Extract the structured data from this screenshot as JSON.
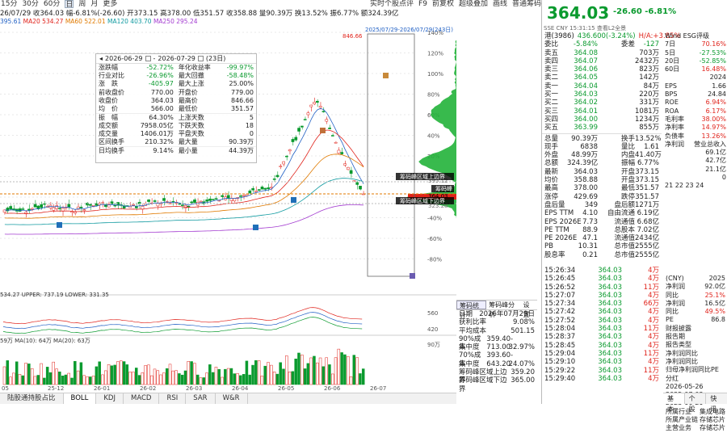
{
  "toolbar": {
    "periods": [
      "15分",
      "30分",
      "60分",
      "日",
      "周",
      "月",
      "更多"
    ],
    "active": "日",
    "quote": "26/07/29 收364.03 幅-6.81%(-26.60) 开373.15 高378.00 低351.57 收358.88 量90.39万 换13.52% 振6.77% 额324.39亿",
    "links": [
      "实时个股点评",
      "F9",
      "前复权",
      "超级叠加",
      "画线",
      "普通筹码"
    ]
  },
  "ma_line": {
    "ma5": "395.61",
    "ma20": "534.27",
    "ma60": "522.01",
    "ma120": "403.70",
    "ma250": "295.24"
  },
  "ma_colors": {
    "ma5": "#1f5fc4",
    "ma20": "#e0231b",
    "ma60": "#e07a00",
    "ma120": "#109aa0",
    "ma250": "#a33bd0"
  },
  "chart": {
    "y_ticks": [
      "140%",
      "120%",
      "100%",
      "80%",
      "60%",
      "40%",
      "20%",
      "0%",
      "-20%",
      "-40%",
      "-60%",
      "-80%"
    ],
    "max_label": "846.66",
    "price_labels": [
      "395.12",
      "364.03",
      "323.28"
    ],
    "interval_label": "2025/07/29-2026/07/29(243日)",
    "x_labels": [
      "05",
      "25-12",
      "26-01",
      "26-02",
      "26-03",
      "26-04",
      "26-05",
      "26-06",
      "26-07"
    ],
    "chip_labels": [
      "筹码峰区域上边界",
      "筹码峰",
      "筹码峰区域下边界"
    ],
    "boll": "534.27 UPPER: 737.19 LOWER: 331.35",
    "boll_ticks": [
      "560",
      "420"
    ],
    "vol": "59万 MA(10): 64万 MA(20): 63万",
    "vol_tick": "90万"
  },
  "statbox": {
    "date_from": "2026-06-29",
    "date_to": "2026-07-29",
    "days": "(23日)",
    "rows": [
      [
        "涨跌幅",
        "-52.72%",
        "年化收益率",
        "-99.97%"
      ],
      [
        "行业对比",
        "-26.96%",
        "最大回撤",
        "-58.48%"
      ],
      [
        "涨　跌",
        "-405.97",
        "最大上涨",
        "25.00%"
      ],
      [
        "前收盘价",
        "770.00",
        "开盘价",
        "779.00"
      ],
      [
        "收盘价",
        "364.03",
        "最高价",
        "846.66"
      ],
      [
        "均　价",
        "566.00",
        "最低价",
        "351.57"
      ],
      [
        "振　幅",
        "64.30%",
        "上涨天数",
        "5"
      ],
      [
        "成交额",
        "7958.05亿",
        "下跌天数",
        "18"
      ],
      [
        "成交量",
        "1406.01万",
        "平盘天数",
        "0"
      ],
      [
        "区间换手",
        "210.32%",
        "最大量",
        "90.39万"
      ],
      [
        "日均换手",
        "9.14%",
        "最小量",
        "44.39万"
      ]
    ]
  },
  "bottom_tabs": [
    "陆股通持股占比",
    "BOLL",
    "KDJ",
    "MACD",
    "RSI",
    "SAR",
    "W&R"
  ],
  "bottom_active": "BOLL",
  "chipinfo": {
    "tabs": [
      "筹码统计",
      "筹码峰分析",
      "设置"
    ],
    "rows": [
      [
        "日期",
        "2026年07月29日"
      ],
      [
        "获利比率",
        "9.08%"
      ],
      [
        "平均成本",
        "501.15"
      ],
      [
        "90%成本",
        "359.40-713.00"
      ],
      [
        "集中度",
        "32.97%"
      ],
      [
        "70%成本",
        "393.60-643.20"
      ],
      [
        "集中度",
        "24.07%"
      ],
      [
        "筹码峰区域上边界",
        "359.20"
      ],
      [
        "筹码峰区域下边界",
        "365.00"
      ]
    ]
  },
  "right": {
    "price": "364.03",
    "chg": "-26.60 -6.81%",
    "ticker": "SSE CNY 15:31:15 查看L2全景",
    "ref": [
      "港(3986)",
      "436.600(-3.24%)",
      "H/A:+3.85%"
    ],
    "book": [
      [
        "委比",
        "-5.84%",
        "委差",
        "-127"
      ],
      [
        "卖五",
        "364.08",
        "",
        "703万"
      ],
      [
        "卖四",
        "364.07",
        "",
        "2432万"
      ],
      [
        "卖三",
        "364.06",
        "",
        "823万"
      ],
      [
        "卖二",
        "364.05",
        "",
        "142万"
      ],
      [
        "卖一",
        "364.04",
        "",
        "84万"
      ],
      [
        "买一",
        "364.03",
        "",
        "220万"
      ],
      [
        "买二",
        "364.02",
        "",
        "331万"
      ],
      [
        "买三",
        "364.01",
        "",
        "1081万"
      ],
      [
        "买四",
        "364.00",
        "",
        "1234万"
      ],
      [
        "买五",
        "363.99",
        "",
        "855万"
      ]
    ],
    "stats": [
      [
        "总量",
        "90.39万",
        "换手",
        "13.52%"
      ],
      [
        "现手",
        "6838",
        "量比",
        "1.61"
      ],
      [
        "外盘",
        "48.99万",
        "内盘",
        "41.40万"
      ],
      [
        "总额",
        "324.39亿",
        "振幅",
        "6.77%"
      ],
      [
        "最新",
        "364.03",
        "开盘",
        "373.15"
      ],
      [
        "均价",
        "358.88",
        "开盘",
        "373.15"
      ],
      [
        "最高",
        "378.00",
        "最低",
        "351.57"
      ],
      [
        "涨停",
        "429.69",
        "跌停",
        "351.57"
      ],
      [
        "盘后量",
        "349",
        "盘后额",
        "1271万"
      ],
      [
        "EPS TTM",
        "4.10",
        "自由流通",
        "6.19亿"
      ],
      [
        "EPS 2026E",
        "7.73",
        "流通值",
        "6.68亿"
      ],
      [
        "PE TTM",
        "88.9",
        "总股本",
        "7.02亿"
      ],
      [
        "PE 2026E",
        "47.1",
        "流通值",
        "2434亿"
      ],
      [
        "PB",
        "10.31",
        "总市值",
        "2555亿"
      ],
      [
        "股息率",
        "0.21",
        "总市值",
        "2555亿"
      ]
    ],
    "side": [
      [
        "Wind ESG评级",
        ""
      ],
      [
        "7日",
        "70.16%"
      ],
      [
        "5日",
        "-27.53%"
      ],
      [
        "20日",
        "-52.85%"
      ],
      [
        "60日",
        "16.48%"
      ],
      [
        "",
        "2024"
      ],
      [
        "EPS",
        "1.66"
      ],
      [
        "BPS",
        "24.84"
      ],
      [
        "ROE",
        "6.94%"
      ],
      [
        "ROA",
        "6.17%"
      ],
      [
        "毛利率",
        "38.00%"
      ],
      [
        "净利率",
        "14.97%"
      ],
      [
        "负债率",
        "13.26%"
      ],
      [
        "净利润",
        "营业总收入"
      ],
      [
        "",
        "69.1亿"
      ],
      [
        "",
        "42.7亿"
      ],
      [
        "",
        "21.1亿"
      ],
      [
        "",
        "0"
      ],
      [
        "21 22 23 24",
        ""
      ]
    ],
    "trades": [
      [
        "15:26:34",
        "364.03",
        "4万"
      ],
      [
        "15:26:45",
        "364.03",
        "4万"
      ],
      [
        "15:26:52",
        "364.03",
        "11万"
      ],
      [
        "15:27:07",
        "364.03",
        "4万"
      ],
      [
        "15:27:34",
        "364.03",
        "66万"
      ],
      [
        "15:27:42",
        "364.03",
        "4万"
      ],
      [
        "15:27:52",
        "364.03",
        "4万"
      ],
      [
        "15:28:04",
        "364.03",
        "11万"
      ],
      [
        "15:28:37",
        "364.03",
        "4万"
      ],
      [
        "15:28:45",
        "364.03",
        "4万"
      ],
      [
        "15:29:04",
        "364.03",
        "11万"
      ],
      [
        "15:29:10",
        "364.03",
        "4万"
      ],
      [
        "15:29:22",
        "364.03",
        "11万"
      ],
      [
        "15:29:40",
        "364.03",
        "4万"
      ]
    ],
    "side2": [
      [
        "(CNY)",
        "2025"
      ],
      [
        "净利润",
        "92.0亿"
      ],
      [
        "同比",
        "25.1%"
      ],
      [
        "净利润",
        "16.5亿"
      ],
      [
        "同比",
        "49.5%"
      ],
      [
        "PE",
        "86.8"
      ],
      [
        "财报披露",
        ""
      ],
      [
        "报告期",
        ""
      ],
      [
        "报告类型",
        ""
      ],
      [
        "净利润同比",
        ""
      ],
      [
        "净利润同比",
        ""
      ],
      [
        "归母净利润同比PE",
        ""
      ],
      [
        "分红",
        ""
      ],
      [
        "2026-05-26",
        ""
      ],
      [
        "2025-07-03",
        ""
      ],
      [
        "2023-06-20",
        ""
      ],
      [
        "所属行业",
        "集成电路"
      ],
      [
        "所属产业链",
        "存储芯片"
      ],
      [
        "主营业务",
        "存储芯片"
      ]
    ],
    "tabs": [
      "基本",
      "个股",
      "快讯"
    ]
  }
}
